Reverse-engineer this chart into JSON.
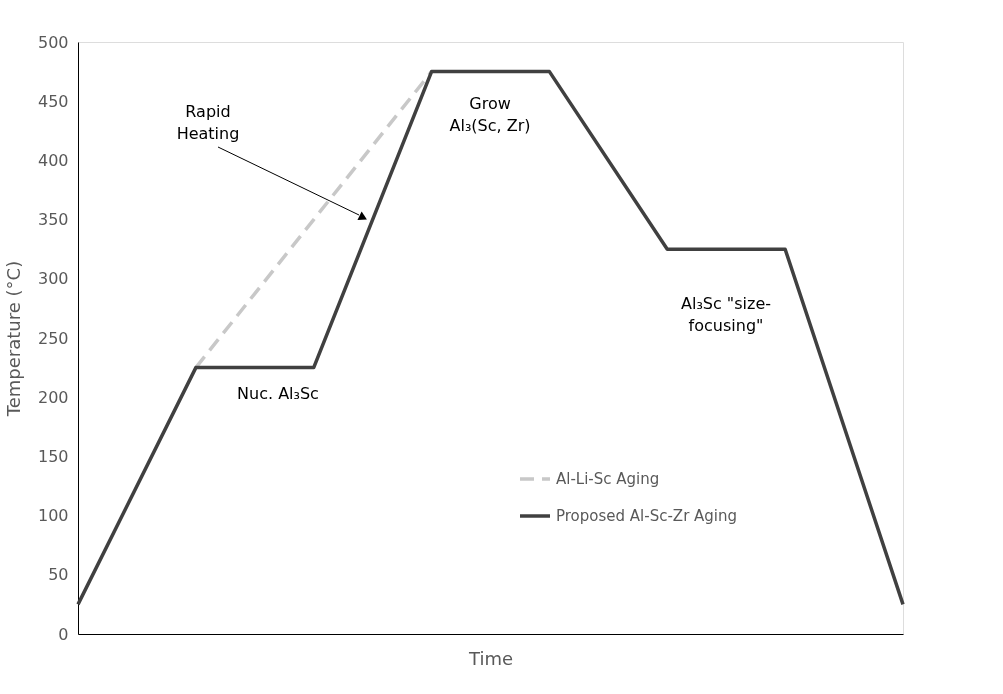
{
  "chart_data": {
    "type": "line",
    "xlabel": "Time",
    "ylabel": "Temperature (°C)",
    "categories": [
      null,
      null,
      null,
      null,
      null,
      null,
      null,
      null
    ],
    "ylim": [
      0,
      500
    ],
    "yticks": [
      0,
      50,
      100,
      150,
      200,
      250,
      300,
      350,
      400,
      450,
      500
    ],
    "grid": false,
    "legend": "bottom right",
    "marker": "none",
    "series": [
      {
        "name": "Al-Li-Sc Aging",
        "color": "#c8c8c8",
        "line_style": "dashed",
        "values": [
          null,
          225,
          350,
          475,
          null,
          null,
          null,
          null
        ]
      },
      {
        "name": "Proposed Al-Sc-Zr Aging",
        "color": "#404040",
        "line_style": "solid",
        "values": [
          25,
          225,
          225,
          475,
          475,
          325,
          325,
          25
        ]
      }
    ],
    "annotations": [
      "Rapid\nHeating",
      "Nuc. Al₃Sc",
      "Grow\nAl₃(Sc, Zr)",
      "Al₃Sc \"size-\nfocusing\""
    ]
  }
}
